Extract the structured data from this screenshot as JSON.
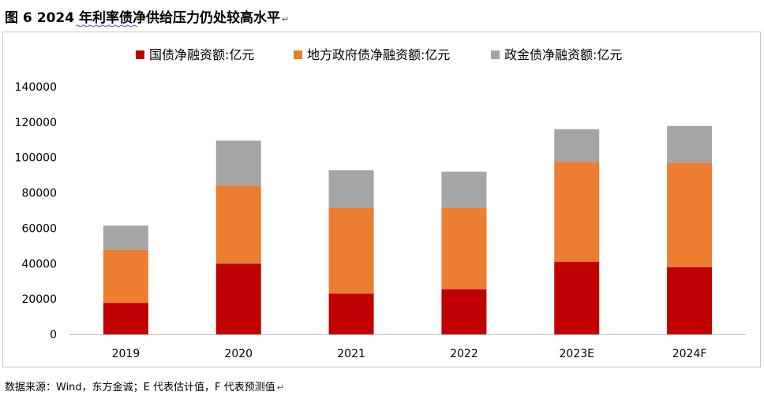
{
  "figure": {
    "title_prefix": "图 6",
    "title_text": "2024 年利率债净供给压力仍处较高水平",
    "para_mark": "↵"
  },
  "source_note": "数据来源：Wind，东方金诚；E 代表估计值，F 代表预测值",
  "source_para_mark": "↵",
  "chart_data": {
    "type": "bar",
    "stacked": true,
    "categories": [
      "2019",
      "2020",
      "2021",
      "2022",
      "2023E",
      "2024F"
    ],
    "series": [
      {
        "name": "国债净融资额:亿元",
        "color": "#C00000",
        "values": [
          17800,
          40000,
          23000,
          25500,
          41000,
          38000
        ]
      },
      {
        "name": "地方政府债净融资额:亿元",
        "color": "#ED7D31",
        "values": [
          30000,
          44000,
          48500,
          46000,
          56500,
          59000
        ]
      },
      {
        "name": "政金债净融资额:亿元",
        "color": "#A5A5A5",
        "values": [
          13700,
          25500,
          21300,
          20500,
          18500,
          20800
        ]
      }
    ],
    "yticks": [
      "0",
      "20000",
      "40000",
      "60000",
      "80000",
      "100000",
      "120000",
      "140000"
    ],
    "ylim": [
      0,
      140000
    ],
    "legend_position": "top",
    "grid": false,
    "title": "",
    "xlabel": "",
    "ylabel": ""
  }
}
